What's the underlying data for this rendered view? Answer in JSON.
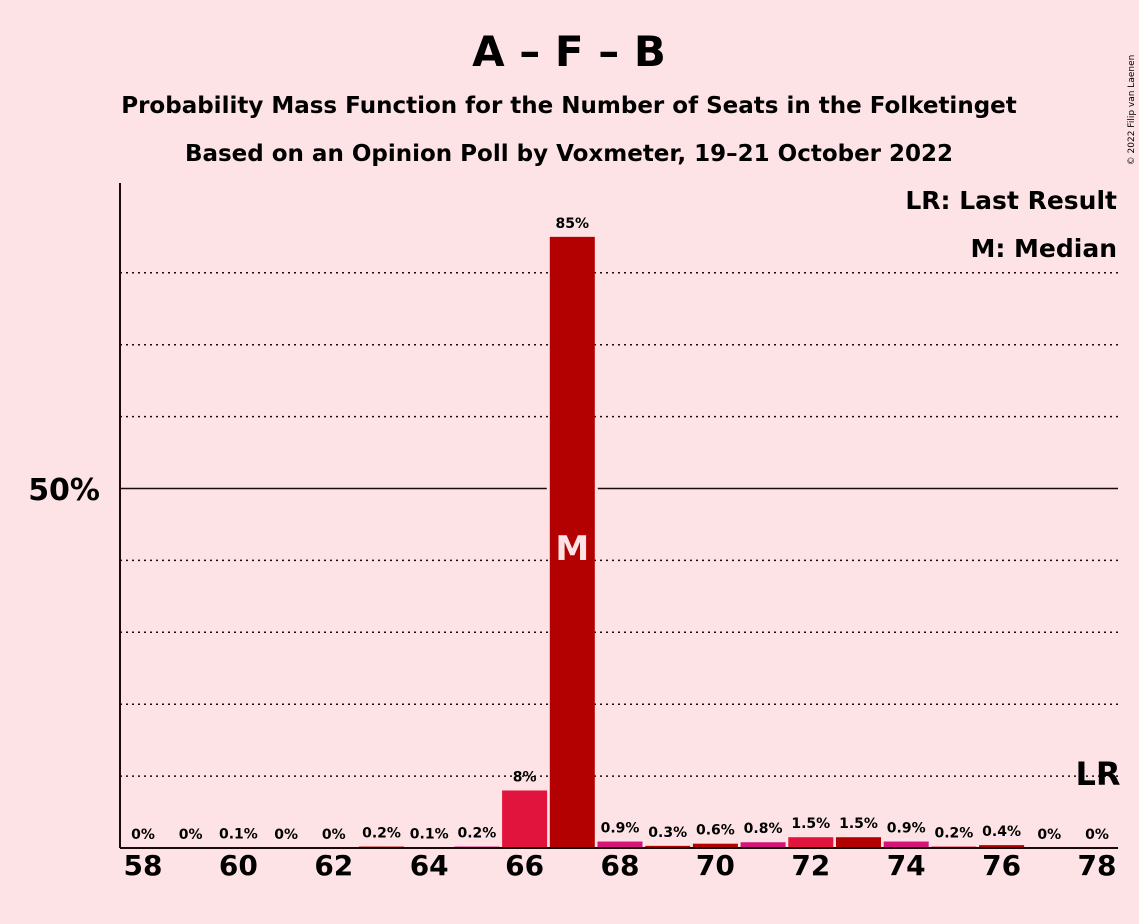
{
  "title": "A – F – B",
  "subtitle1": "Probability Mass Function for the Number of Seats in the Folketinget",
  "subtitle2": "Based on an Opinion Poll by Voxmeter, 19–21 October 2022",
  "legend": {
    "lr": "LR: Last Result",
    "m": "M: Median"
  },
  "copyright": "© 2022 Filip van Laenen",
  "colors": {
    "background": "#fde3e6",
    "median_bar": "#b30000",
    "crimson": "#e0143c",
    "pink": "#d4147a",
    "axis": "#1a0a0a"
  },
  "chart_data": {
    "type": "bar",
    "categories": [
      58,
      59,
      60,
      61,
      62,
      63,
      64,
      65,
      66,
      67,
      68,
      69,
      70,
      71,
      72,
      73,
      74,
      75,
      76,
      77,
      78
    ],
    "values": [
      0,
      0,
      0.1,
      0,
      0,
      0.2,
      0.1,
      0.2,
      8,
      85,
      0.9,
      0.3,
      0.6,
      0.8,
      1.5,
      1.5,
      0.9,
      0.2,
      0.4,
      0,
      0
    ],
    "value_labels": [
      "0%",
      "0%",
      "0.1%",
      "0%",
      "0%",
      "0.2%",
      "0.1%",
      "0.2%",
      "8%",
      "85%",
      "0.9%",
      "0.3%",
      "0.6%",
      "0.8%",
      "1.5%",
      "1.5%",
      "0.9%",
      "0.2%",
      "0.4%",
      "0%",
      "0%"
    ],
    "bar_colors": [
      "#e0143c",
      "#d4147a",
      "#b30000",
      "#e0143c",
      "#d4147a",
      "#b30000",
      "#e0143c",
      "#d4147a",
      "#e0143c",
      "#b30000",
      "#d4147a",
      "#b30000",
      "#b30000",
      "#d4147a",
      "#e0143c",
      "#b30000",
      "#d4147a",
      "#e0143c",
      "#b30000",
      "#d4147a",
      "#e0143c"
    ],
    "x_tick_labels": [
      "58",
      "60",
      "62",
      "64",
      "66",
      "68",
      "70",
      "72",
      "74",
      "76",
      "78"
    ],
    "y_tick_label": "50%",
    "ylim": [
      0,
      100
    ],
    "gridlines_dotted": [
      10,
      20,
      30,
      40,
      60,
      70,
      80
    ],
    "gridline_solid": 50,
    "median_seat": 67,
    "median_label": "M",
    "last_result_seat": 78,
    "last_result_label": "LR",
    "last_result_level": 10,
    "legend_position": "top-right"
  }
}
